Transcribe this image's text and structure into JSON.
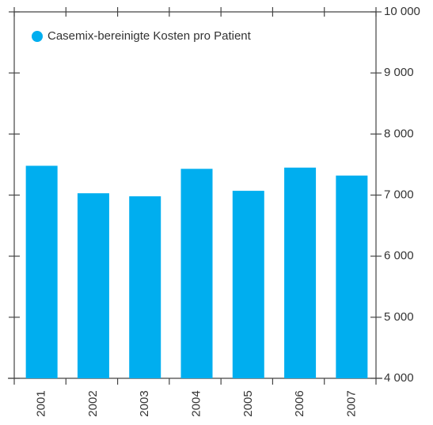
{
  "chart_data": {
    "type": "bar",
    "categories": [
      "2001",
      "2002",
      "2003",
      "2004",
      "2005",
      "2006",
      "2007"
    ],
    "series": [
      {
        "name": "Casemix-bereinigte Kosten pro Patient",
        "color": "#00aeef",
        "values": [
          7480,
          7030,
          6980,
          7430,
          7070,
          7450,
          7320
        ]
      }
    ],
    "ylim": [
      4000,
      10000
    ],
    "yticks": [
      {
        "value": 4000,
        "label": "4 000"
      },
      {
        "value": 5000,
        "label": "5 000"
      },
      {
        "value": 6000,
        "label": "6 000"
      },
      {
        "value": 7000,
        "label": "7 000"
      },
      {
        "value": 8000,
        "label": "8 000"
      },
      {
        "value": 9000,
        "label": "9 000"
      },
      {
        "value": 10000,
        "label": "10 000"
      }
    ],
    "legend": "upper left"
  }
}
